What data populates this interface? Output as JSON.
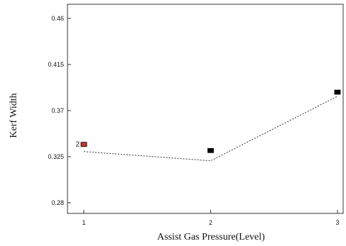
{
  "chart_data": {
    "type": "scatter",
    "xlabel": "Assist Gas Pressure(Level)",
    "ylabel": "Kerf Width",
    "x_ticks": [
      "1",
      "2",
      "3"
    ],
    "y_ticks": [
      "0.28",
      "0.325",
      "0.37",
      "0.415",
      "0.46"
    ],
    "xlim": [
      1,
      3
    ],
    "ylim": [
      0.28,
      0.46
    ],
    "grid": false,
    "series": [
      {
        "points": [
          {
            "x": 1,
            "y": 0.337,
            "label": "2",
            "color": "#c0392b"
          },
          {
            "x": 2,
            "y": 0.331,
            "label": "",
            "color": "#000000"
          },
          {
            "x": 3,
            "y": 0.388,
            "label": "",
            "color": "#000000"
          }
        ]
      }
    ],
    "fit_line": {
      "style": "dashed",
      "x": [
        1,
        2,
        3
      ],
      "y": [
        0.33,
        0.321,
        0.384
      ]
    }
  }
}
